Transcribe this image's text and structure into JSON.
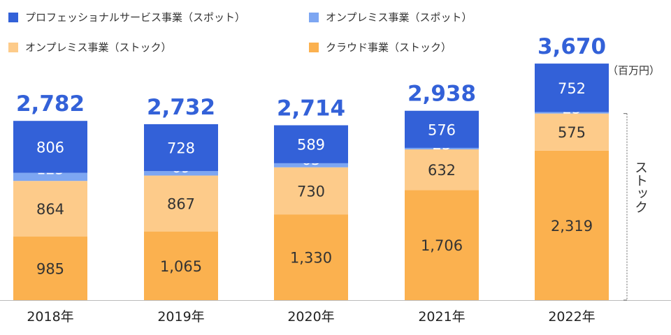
{
  "chart_data": {
    "type": "bar",
    "stacked": true,
    "categories": [
      "2018年",
      "2019年",
      "2020年",
      "2021年",
      "2022年"
    ],
    "series": [
      {
        "name": "クラウド事業（ストック）",
        "color": "#fbb14f",
        "label_color": "#333333",
        "values": [
          985,
          1065,
          1330,
          1706,
          2319
        ]
      },
      {
        "name": "オンプレミス事業（ストック）",
        "color": "#fdcb8a",
        "label_color": "#333333",
        "values": [
          864,
          867,
          730,
          632,
          575
        ]
      },
      {
        "name": "オンプレミス事業（スポット）",
        "color": "#7da6f2",
        "label_color": "#ffffff",
        "values": [
          125,
          69,
          63,
          23,
          23
        ]
      },
      {
        "name": "プロフェッショナルサービス事業（スポット）",
        "color": "#3361d8",
        "label_color": "#ffffff",
        "values": [
          806,
          728,
          589,
          576,
          752
        ]
      }
    ],
    "totals": [
      2782,
      2732,
      2714,
      2938,
      3670
    ],
    "unit": "（百万円）",
    "bracket_label": "ストック",
    "ylim": [
      0,
      3670
    ],
    "grid": false,
    "legend_order": [
      "プロフェッショナルサービス事業（スポット）",
      "オンプレミス事業（スポット）",
      "オンプレミス事業（ストック）",
      "クラウド事業（ストック）"
    ],
    "total_color": "#3361d8"
  }
}
